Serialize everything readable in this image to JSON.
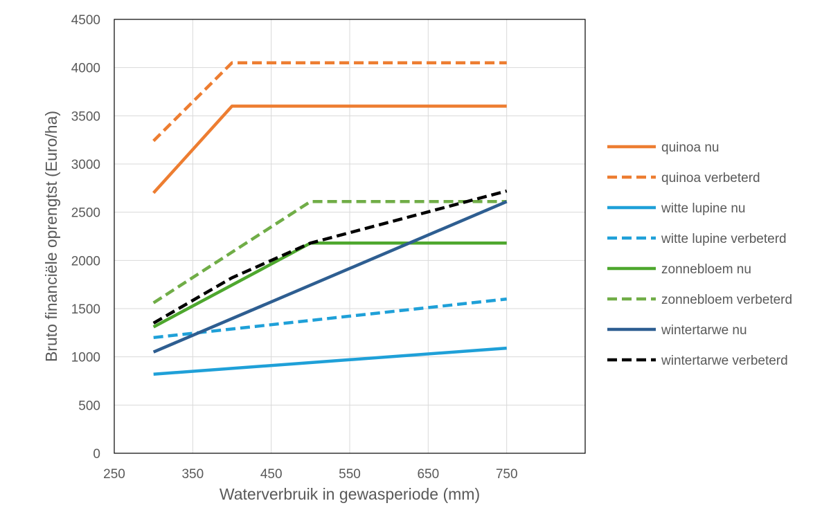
{
  "chart_data": {
    "type": "line",
    "title": "",
    "xlabel": "Waterverbruik in gewasperiode (mm)",
    "ylabel": "Bruto  financiële oprengtst (Euro/ha)",
    "xlim": [
      250,
      850
    ],
    "ylim": [
      0,
      4500
    ],
    "xticks": [
      250,
      350,
      450,
      550,
      650,
      750
    ],
    "yticks": [
      0,
      500,
      1000,
      1500,
      2000,
      2500,
      3000,
      3500,
      4000,
      4500
    ],
    "grid": true,
    "legend_position": "right",
    "series": [
      {
        "name": "quinoa nu",
        "color": "#ED7D31",
        "dash": false,
        "x": [
          300,
          400,
          750
        ],
        "y": [
          2700,
          3600,
          3600
        ]
      },
      {
        "name": "quinoa verbeterd",
        "color": "#ED7D31",
        "dash": true,
        "x": [
          300,
          400,
          750
        ],
        "y": [
          3240,
          4050,
          4050
        ]
      },
      {
        "name": "witte lupine nu",
        "color": "#1FA0D8",
        "dash": false,
        "x": [
          300,
          750
        ],
        "y": [
          820,
          1090
        ]
      },
      {
        "name": "witte lupine verbeterd",
        "color": "#1FA0D8",
        "dash": true,
        "x": [
          300,
          750
        ],
        "y": [
          1200,
          1600
        ]
      },
      {
        "name": "zonnebloem nu",
        "color": "#4EA72E",
        "dash": false,
        "x": [
          300,
          500,
          750
        ],
        "y": [
          1310,
          2180,
          2180
        ]
      },
      {
        "name": "zonnebloem verbeterd",
        "color": "#70AD47",
        "dash": true,
        "x": [
          300,
          500,
          750
        ],
        "y": [
          1560,
          2610,
          2610
        ]
      },
      {
        "name": "wintertarwe nu",
        "color": "#2E5E91",
        "dash": false,
        "x": [
          300,
          750
        ],
        "y": [
          1050,
          2610
        ]
      },
      {
        "name": "wintertarwe verbeterd",
        "color": "#000000",
        "dash": true,
        "x": [
          300,
          400,
          500,
          750
        ],
        "y": [
          1350,
          1820,
          2180,
          2720
        ]
      }
    ]
  }
}
